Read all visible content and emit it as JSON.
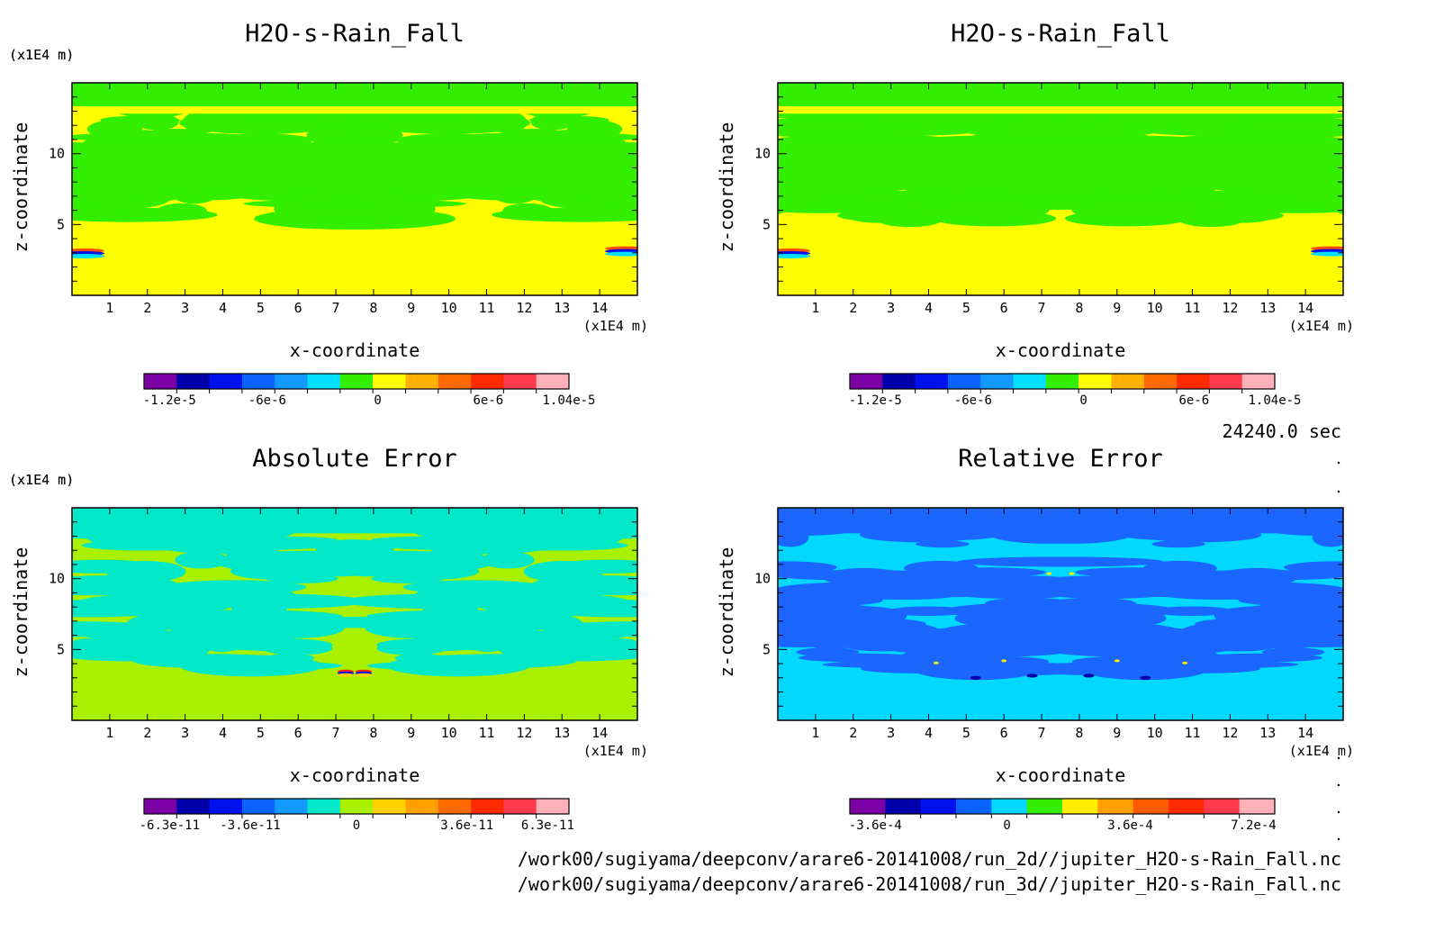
{
  "panels": [
    {
      "title": "H2O-s-Rain_Fall",
      "scale_y": "(x1E4 m)",
      "scale_x": "(x1E4 m)",
      "xlabel": "x-coordinate",
      "ylabel": "z-coordinate",
      "xticks": [
        "1",
        "2",
        "3",
        "4",
        "5",
        "6",
        "7",
        "8",
        "9",
        "10",
        "11",
        "12",
        "13",
        "14"
      ],
      "yticks": [
        "5",
        "10"
      ],
      "bg": "#ffff00",
      "fg": "#33ee00",
      "colorbar_colors": [
        "#7a00a6",
        "#0000aa",
        "#0010ee",
        "#0b63ff",
        "#1199ff",
        "#00e0ff",
        "#33ee00",
        "#ffff00",
        "#ffb000",
        "#ff6a00",
        "#ff2a00",
        "#ff3a4a",
        "#ffb0b8"
      ],
      "colorbar_labels": [
        "-1.2e-5",
        "-6e-6",
        "0",
        "6e-6",
        "1.04e-5"
      ]
    },
    {
      "title": "H2O-s-Rain_Fall",
      "scale_y": "(x1E4 m)",
      "scale_x": "(x1E4 m)",
      "xlabel": "x-coordinate",
      "ylabel": "z-coordinate",
      "xticks": [
        "1",
        "2",
        "3",
        "4",
        "5",
        "6",
        "7",
        "8",
        "9",
        "10",
        "11",
        "12",
        "13",
        "14"
      ],
      "yticks": [
        "5",
        "10"
      ],
      "bg": "#ffff00",
      "fg": "#33ee00",
      "colorbar_colors": [
        "#7a00a6",
        "#0000aa",
        "#0010ee",
        "#0b63ff",
        "#1199ff",
        "#00e0ff",
        "#33ee00",
        "#ffff00",
        "#ffb000",
        "#ff6a00",
        "#ff2a00",
        "#ff3a4a",
        "#ffb0b8"
      ],
      "colorbar_labels": [
        "-1.2e-5",
        "-6e-6",
        "0",
        "6e-6",
        "1.04e-5"
      ]
    },
    {
      "title": "Absolute Error",
      "scale_y": "(x1E4 m)",
      "scale_x": "(x1E4 m)",
      "xlabel": "x-coordinate",
      "ylabel": "z-coordinate",
      "xticks": [
        "1",
        "2",
        "3",
        "4",
        "5",
        "6",
        "7",
        "8",
        "9",
        "10",
        "11",
        "12",
        "13",
        "14"
      ],
      "yticks": [
        "5",
        "10"
      ],
      "bg": "#a8f000",
      "fg": "#00e8c8",
      "colorbar_colors": [
        "#7a00a6",
        "#0000aa",
        "#0010ee",
        "#0b63ff",
        "#1199ff",
        "#00e8c8",
        "#a8f000",
        "#ffd000",
        "#ffa000",
        "#ff6a00",
        "#ff2a00",
        "#ff3a4a",
        "#ffb0b8"
      ],
      "colorbar_labels": [
        "-6.3e-11",
        "-3.6e-11",
        "0",
        "3.6e-11",
        "6.3e-11"
      ]
    },
    {
      "title": "Relative Error",
      "scale_y": "(x1E4 m)",
      "scale_x": "(x1E4 m)",
      "xlabel": "x-coordinate",
      "ylabel": "z-coordinate",
      "xticks": [
        "1",
        "2",
        "3",
        "4",
        "5",
        "6",
        "7",
        "8",
        "9",
        "10",
        "11",
        "12",
        "13",
        "14"
      ],
      "yticks": [
        "5",
        "10"
      ],
      "bg": "#00d8ff",
      "fg": "#1a66ff",
      "colorbar_colors": [
        "#7a00a6",
        "#0000aa",
        "#0010ee",
        "#0b63ff",
        "#00d8ff",
        "#33ee00",
        "#ffee00",
        "#ffa000",
        "#ff5a00",
        "#ff2a00",
        "#ff3a4a",
        "#ffb0b8"
      ],
      "colorbar_labels": [
        "-3.6e-4",
        "0",
        "3.6e-4",
        "7.2e-4"
      ]
    }
  ],
  "time_label": "24240.0 sec",
  "file_paths": [
    "/work00/sugiyama/deepconv/arare6-20141008/run_2d//jupiter_H2O-s-Rain_Fall.nc",
    "/work00/sugiyama/deepconv/arare6-20141008/run_3d//jupiter_H2O-s-Rain_Fall.nc"
  ],
  "chart_data": [
    {
      "type": "heatmap",
      "title": "H2O-s-Rain_Fall",
      "xlabel": "x-coordinate",
      "ylabel": "z-coordinate",
      "xlim": [
        0,
        15
      ],
      "ylim": [
        0,
        15
      ],
      "colorbar": [
        "-1.2e-5",
        "-6e-6",
        "0",
        "6e-6",
        "1.04e-5"
      ]
    },
    {
      "type": "heatmap",
      "title": "H2O-s-Rain_Fall",
      "xlabel": "x-coordinate",
      "ylabel": "z-coordinate",
      "xlim": [
        0,
        15
      ],
      "ylim": [
        0,
        15
      ],
      "colorbar": [
        "-1.2e-5",
        "-6e-6",
        "0",
        "6e-6",
        "1.04e-5"
      ]
    },
    {
      "type": "heatmap",
      "title": "Absolute Error",
      "xlabel": "x-coordinate",
      "ylabel": "z-coordinate",
      "xlim": [
        0,
        15
      ],
      "ylim": [
        0,
        15
      ],
      "colorbar": [
        "-6.3e-11",
        "-3.6e-11",
        "0",
        "3.6e-11",
        "6.3e-11"
      ]
    },
    {
      "type": "heatmap",
      "title": "Relative Error",
      "xlabel": "x-coordinate",
      "ylabel": "z-coordinate",
      "xlim": [
        0,
        15
      ],
      "ylim": [
        0,
        15
      ],
      "colorbar": [
        "-3.6e-4",
        "0",
        "3.6e-4",
        "7.2e-4"
      ]
    }
  ]
}
